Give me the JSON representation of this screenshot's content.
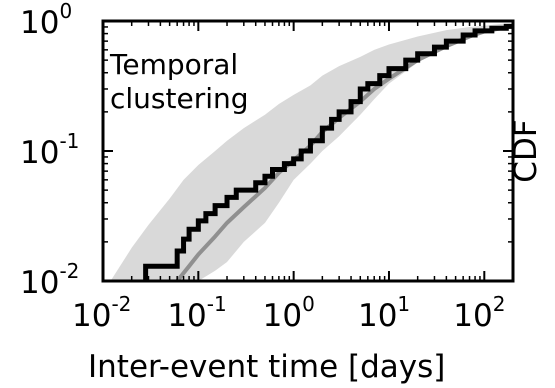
{
  "chart_data": {
    "type": "line",
    "x_scale": "log",
    "y_scale": "log",
    "xlim": [
      0.01,
      200
    ],
    "ylim": [
      0.01,
      1
    ],
    "xlabel": "Inter-event time   [days]",
    "ylabel": "CDF",
    "annotation": [
      "Temporal",
      "clustering"
    ],
    "x_ticks": [
      {
        "value": 0.01,
        "base": "10",
        "exp": "-2"
      },
      {
        "value": 0.1,
        "base": "10",
        "exp": "-1"
      },
      {
        "value": 1,
        "base": "10",
        "exp": "0"
      },
      {
        "value": 10,
        "base": "10",
        "exp": "1"
      },
      {
        "value": 100,
        "base": "10",
        "exp": "2"
      }
    ],
    "y_ticks": [
      {
        "value": 1,
        "base": "10",
        "exp": "0"
      },
      {
        "value": 0.1,
        "base": "10",
        "exp": "-1"
      },
      {
        "value": 0.01,
        "base": "10",
        "exp": "-2"
      }
    ],
    "colors": {
      "observed": "#000000",
      "null_median": "#909090",
      "null_band": "#d9d9d9"
    },
    "series": [
      {
        "kind": "band",
        "upper": [
          [
            0.012,
            0.01
          ],
          [
            0.02,
            0.018
          ],
          [
            0.03,
            0.027
          ],
          [
            0.05,
            0.043
          ],
          [
            0.07,
            0.06
          ],
          [
            0.1,
            0.078
          ],
          [
            0.15,
            0.1
          ],
          [
            0.2,
            0.12
          ],
          [
            0.3,
            0.15
          ],
          [
            0.5,
            0.19
          ],
          [
            0.7,
            0.23
          ],
          [
            1.0,
            0.27
          ],
          [
            1.5,
            0.32
          ],
          [
            2.0,
            0.38
          ],
          [
            3.0,
            0.45
          ],
          [
            5.0,
            0.53
          ],
          [
            7.0,
            0.6
          ],
          [
            10,
            0.66
          ],
          [
            20,
            0.76
          ],
          [
            40,
            0.85
          ],
          [
            70,
            0.9
          ],
          [
            100,
            0.92
          ],
          [
            150,
            0.95
          ],
          [
            200,
            0.96
          ]
        ],
        "lower": [
          [
            0.1,
            0.01
          ],
          [
            0.15,
            0.012
          ],
          [
            0.2,
            0.014
          ],
          [
            0.3,
            0.02
          ],
          [
            0.5,
            0.028
          ],
          [
            0.7,
            0.04
          ],
          [
            1.0,
            0.06
          ],
          [
            1.5,
            0.08
          ],
          [
            2.0,
            0.1
          ],
          [
            3.0,
            0.13
          ],
          [
            5.0,
            0.19
          ],
          [
            7.0,
            0.25
          ],
          [
            10,
            0.33
          ],
          [
            20,
            0.48
          ],
          [
            40,
            0.64
          ],
          [
            70,
            0.77
          ],
          [
            100,
            0.84
          ],
          [
            150,
            0.88
          ],
          [
            200,
            0.9
          ]
        ]
      },
      {
        "kind": "null_median",
        "points": [
          [
            0.06,
            0.01
          ],
          [
            0.08,
            0.013
          ],
          [
            0.1,
            0.016
          ],
          [
            0.15,
            0.022
          ],
          [
            0.2,
            0.028
          ],
          [
            0.3,
            0.037
          ],
          [
            0.5,
            0.052
          ],
          [
            0.7,
            0.068
          ],
          [
            1.0,
            0.085
          ],
          [
            1.5,
            0.11
          ],
          [
            2.0,
            0.14
          ],
          [
            3.0,
            0.18
          ],
          [
            5.0,
            0.24
          ],
          [
            7.0,
            0.3
          ],
          [
            10,
            0.36
          ],
          [
            20,
            0.5
          ],
          [
            40,
            0.64
          ],
          [
            70,
            0.76
          ],
          [
            100,
            0.83
          ],
          [
            150,
            0.88
          ],
          [
            200,
            0.91
          ]
        ]
      },
      {
        "kind": "observed_cdf",
        "points": [
          [
            0.028,
            0.0085
          ],
          [
            0.028,
            0.013
          ],
          [
            0.06,
            0.013
          ],
          [
            0.06,
            0.017
          ],
          [
            0.07,
            0.017
          ],
          [
            0.07,
            0.021
          ],
          [
            0.08,
            0.021
          ],
          [
            0.08,
            0.025
          ],
          [
            0.1,
            0.025
          ],
          [
            0.1,
            0.029
          ],
          [
            0.12,
            0.029
          ],
          [
            0.12,
            0.033
          ],
          [
            0.15,
            0.033
          ],
          [
            0.15,
            0.038
          ],
          [
            0.2,
            0.038
          ],
          [
            0.2,
            0.044
          ],
          [
            0.25,
            0.044
          ],
          [
            0.25,
            0.05
          ],
          [
            0.4,
            0.05
          ],
          [
            0.4,
            0.057
          ],
          [
            0.5,
            0.057
          ],
          [
            0.5,
            0.064
          ],
          [
            0.6,
            0.064
          ],
          [
            0.6,
            0.072
          ],
          [
            0.8,
            0.072
          ],
          [
            0.8,
            0.08
          ],
          [
            1.0,
            0.08
          ],
          [
            1.0,
            0.087
          ],
          [
            1.2,
            0.087
          ],
          [
            1.2,
            0.1
          ],
          [
            1.5,
            0.1
          ],
          [
            1.5,
            0.12
          ],
          [
            2.0,
            0.12
          ],
          [
            2.0,
            0.15
          ],
          [
            2.5,
            0.15
          ],
          [
            2.5,
            0.175
          ],
          [
            3.0,
            0.175
          ],
          [
            3.0,
            0.2
          ],
          [
            4.0,
            0.2
          ],
          [
            4.0,
            0.24
          ],
          [
            5.0,
            0.24
          ],
          [
            5.0,
            0.3
          ],
          [
            6.0,
            0.3
          ],
          [
            6.0,
            0.33
          ],
          [
            8.0,
            0.33
          ],
          [
            8.0,
            0.38
          ],
          [
            10,
            0.38
          ],
          [
            10,
            0.43
          ],
          [
            15,
            0.43
          ],
          [
            15,
            0.5
          ],
          [
            20,
            0.5
          ],
          [
            20,
            0.56
          ],
          [
            30,
            0.56
          ],
          [
            30,
            0.63
          ],
          [
            40,
            0.63
          ],
          [
            40,
            0.7
          ],
          [
            60,
            0.7
          ],
          [
            60,
            0.78
          ],
          [
            80,
            0.78
          ],
          [
            80,
            0.84
          ],
          [
            120,
            0.84
          ],
          [
            120,
            0.88
          ],
          [
            170,
            0.88
          ],
          [
            170,
            0.91
          ],
          [
            200,
            0.91
          ]
        ]
      }
    ]
  }
}
